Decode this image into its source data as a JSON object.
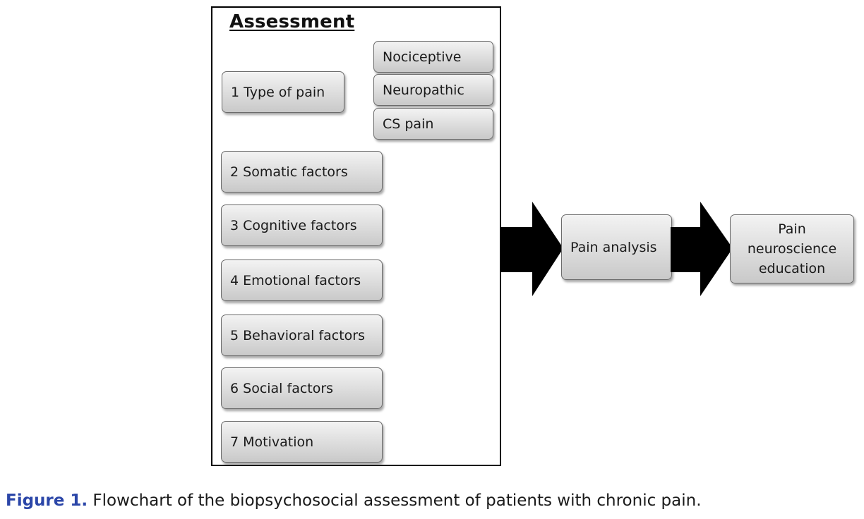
{
  "assessment": {
    "title": "Assessment"
  },
  "type_subtypes": [
    "Nociceptive",
    "Neuropathic",
    "CS pain"
  ],
  "factors": [
    "1  Type of pain",
    "2  Somatic factors",
    "3  Cognitive factors",
    "4  Emotional factors",
    "5  Behavioral factors",
    "6  Social factors",
    "7  Motivation"
  ],
  "flow": {
    "analysis": "Pain analysis",
    "education_line1": "Pain",
    "education_line2": "neuroscience",
    "education_line3": "education"
  },
  "caption": {
    "label": "Figure 1.",
    "text": " Flowchart of the biopsychosocial assessment of patients with chronic pain."
  },
  "colors": {
    "frame": "#000000",
    "box_border": "#6b6b6b",
    "box_fill_top": "#f3f3f3",
    "box_fill_bottom": "#c9c9c9",
    "arrow": "#000000",
    "caption_label": "#2b46a8"
  },
  "icons": {
    "arrows": [
      "arrow-right-icon",
      "arrow-right-icon"
    ]
  }
}
